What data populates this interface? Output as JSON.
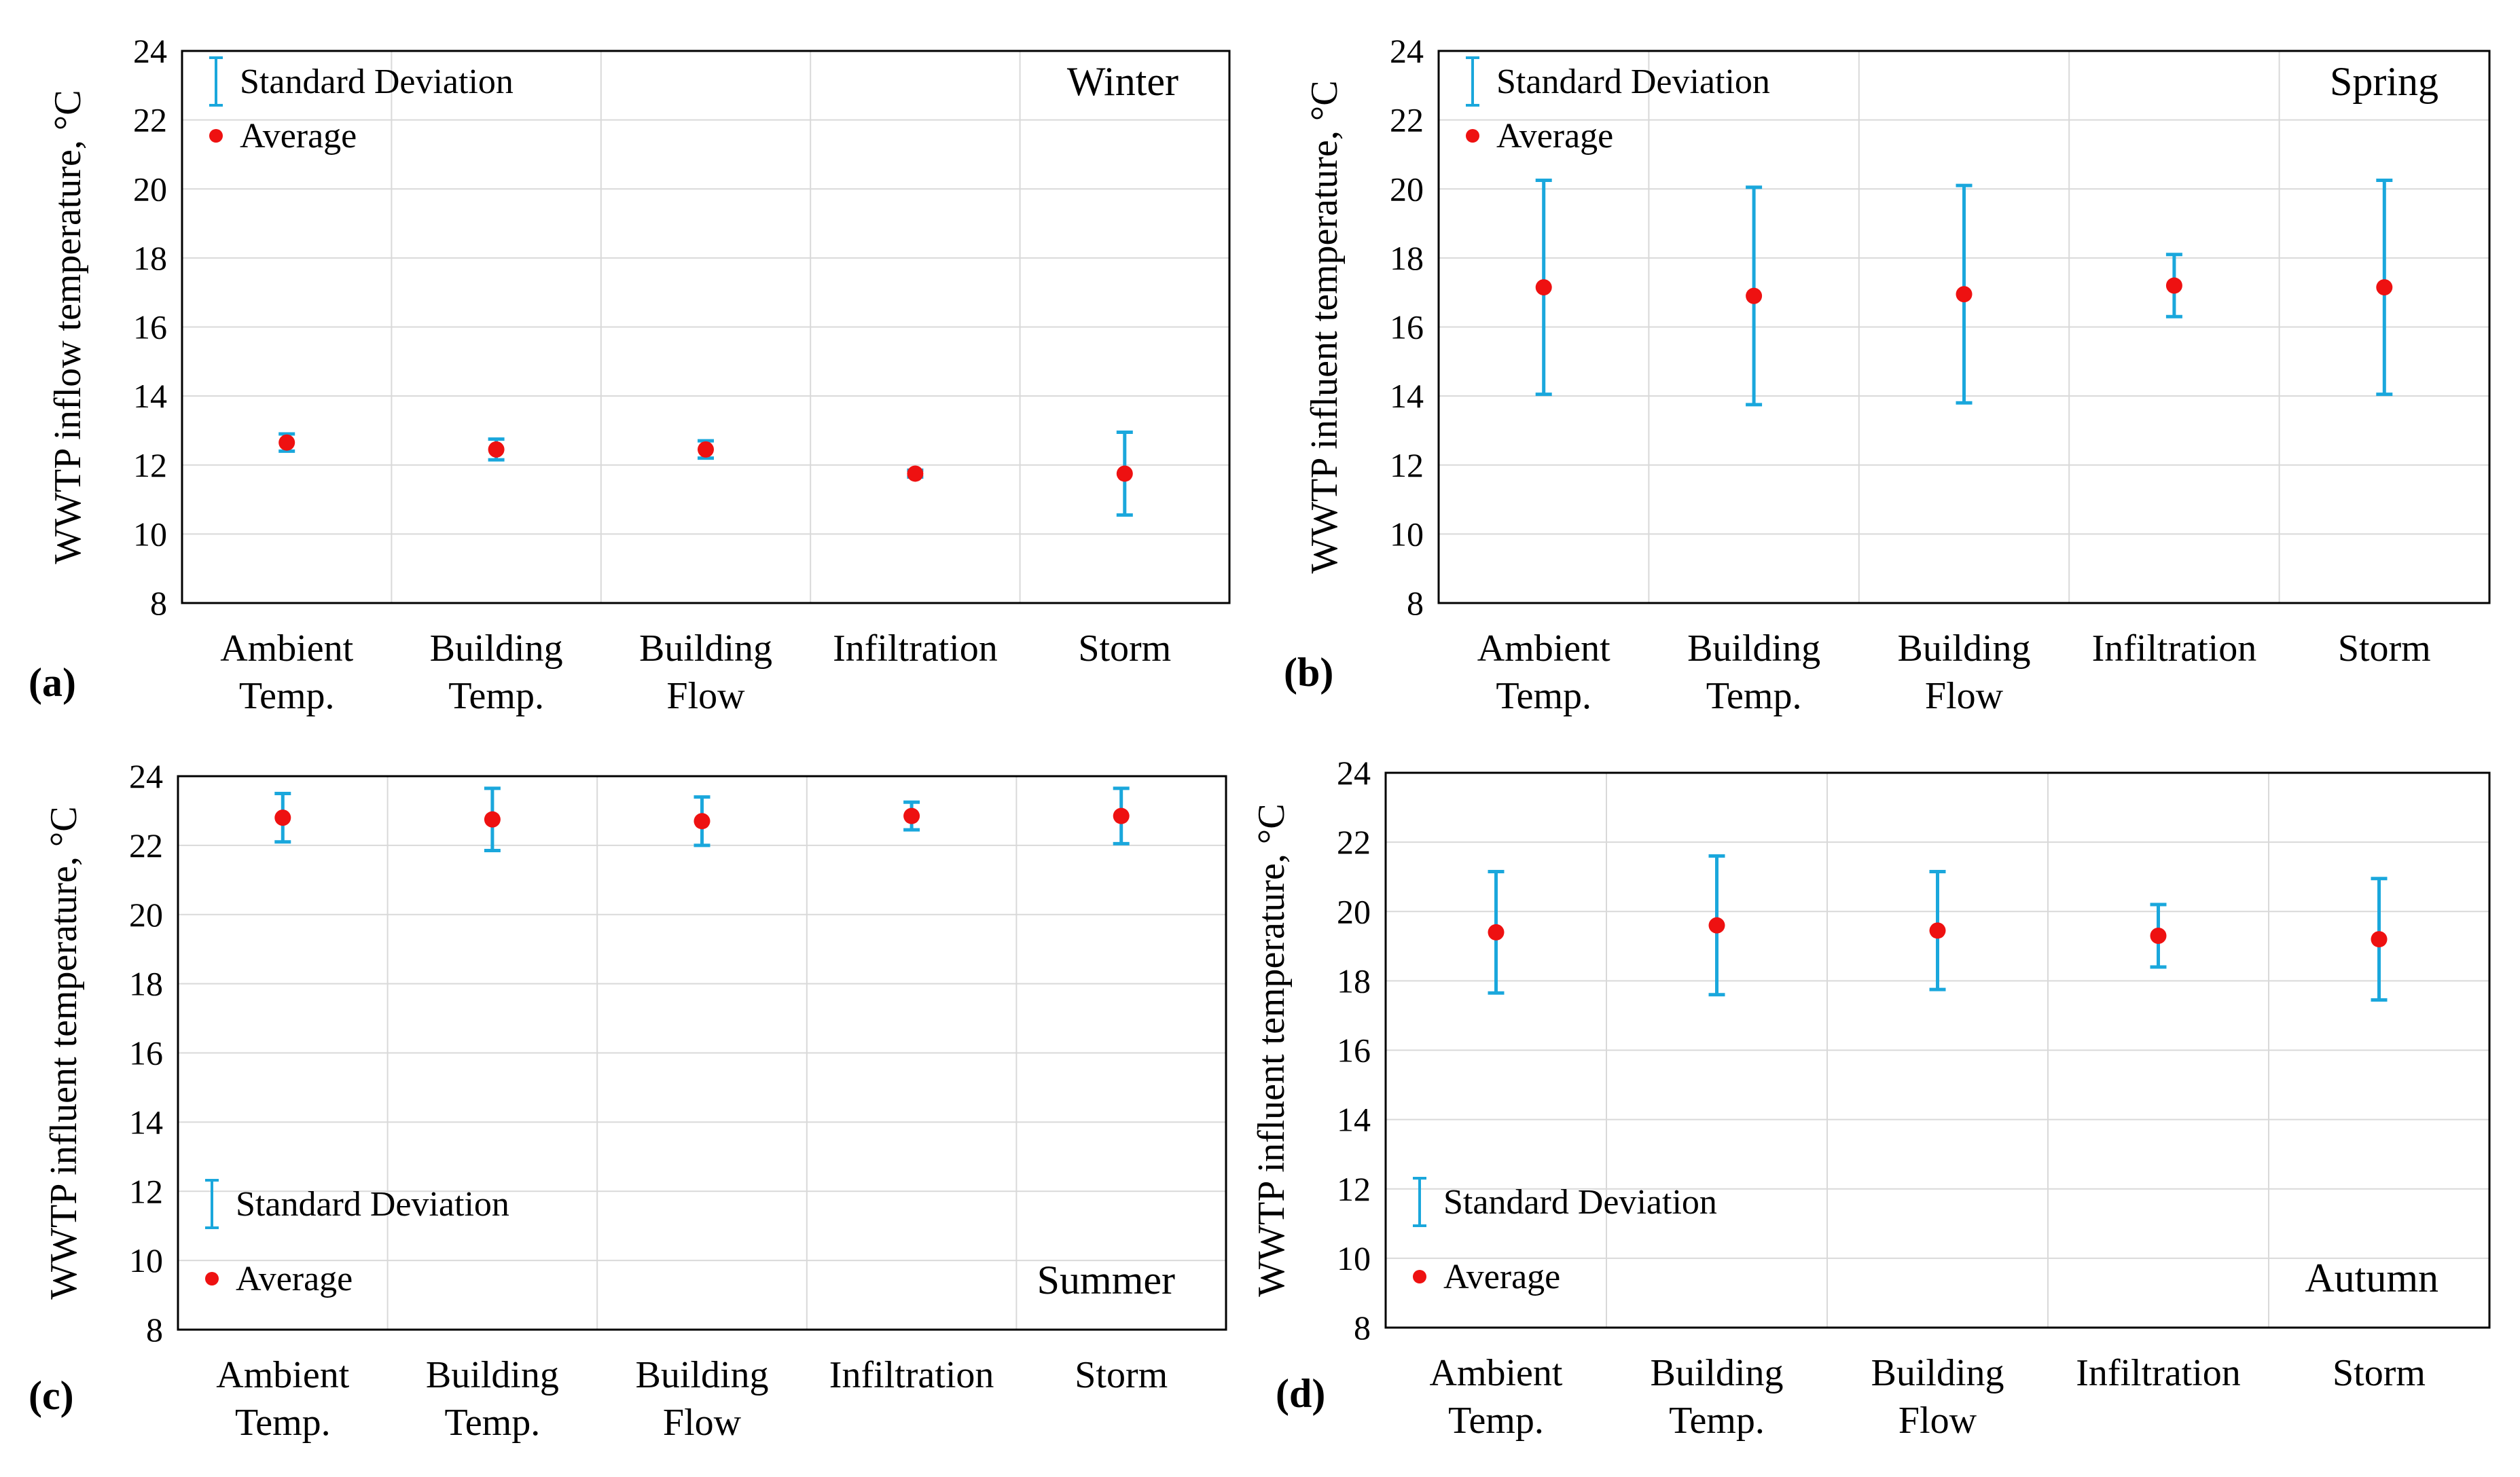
{
  "chart_data": [
    {
      "type": "scatter",
      "panel_label": "(a)",
      "season": "Winter",
      "ylabel": "WWTP inflow temperature, °C",
      "ylim": [
        8,
        24
      ],
      "yticks": [
        "8",
        "10",
        "12",
        "14",
        "16",
        "18",
        "20",
        "22",
        "24"
      ],
      "categories": [
        [
          "Ambient",
          "Temp."
        ],
        [
          "Building",
          "Temp."
        ],
        [
          "Building",
          "Flow"
        ],
        [
          "Infiltration"
        ],
        [
          "Storm"
        ]
      ],
      "series": [
        {
          "name": "Average",
          "values": [
            12.65,
            12.45,
            12.45,
            11.75,
            11.75
          ]
        },
        {
          "name": "Standard Deviation",
          "values": [
            0.25,
            0.3,
            0.25,
            0.1,
            1.2
          ]
        }
      ],
      "legend": {
        "std_label": "Standard Deviation",
        "avg_label": "Average",
        "position": "top-left"
      },
      "grid": true
    },
    {
      "type": "scatter",
      "panel_label": "(b)",
      "season": "Spring",
      "ylabel": "WWTP influent temperature, °C",
      "ylim": [
        8,
        24
      ],
      "yticks": [
        "8",
        "10",
        "12",
        "14",
        "16",
        "18",
        "20",
        "22",
        "24"
      ],
      "categories": [
        [
          "Ambient",
          "Temp."
        ],
        [
          "Building",
          "Temp."
        ],
        [
          "Building",
          "Flow"
        ],
        [
          "Infiltration"
        ],
        [
          "Storm"
        ]
      ],
      "series": [
        {
          "name": "Average",
          "values": [
            17.15,
            16.9,
            16.95,
            17.2,
            17.15
          ]
        },
        {
          "name": "Standard Deviation",
          "values": [
            3.1,
            3.15,
            3.15,
            0.9,
            3.1
          ]
        }
      ],
      "legend": {
        "std_label": "Standard Deviation",
        "avg_label": "Average",
        "position": "top-left"
      },
      "grid": true
    },
    {
      "type": "scatter",
      "panel_label": "(c)",
      "season": "Summer",
      "ylabel": "WWTP influent temperature, °C",
      "ylim": [
        8,
        24
      ],
      "yticks": [
        "8",
        "10",
        "12",
        "14",
        "16",
        "18",
        "20",
        "22",
        "24"
      ],
      "categories": [
        [
          "Ambient",
          "Temp."
        ],
        [
          "Building",
          "Temp."
        ],
        [
          "Building",
          "Flow"
        ],
        [
          "Infiltration"
        ],
        [
          "Storm"
        ]
      ],
      "series": [
        {
          "name": "Average",
          "values": [
            22.8,
            22.75,
            22.7,
            22.85,
            22.85
          ]
        },
        {
          "name": "Standard Deviation",
          "values": [
            0.7,
            0.9,
            0.7,
            0.4,
            0.8
          ]
        }
      ],
      "legend": {
        "std_label": "Standard Deviation",
        "avg_label": "Average",
        "position": "bottom-left"
      },
      "grid": true
    },
    {
      "type": "scatter",
      "panel_label": "(d)",
      "season": "Autumn",
      "ylabel": "WWTP influent temperature, °C",
      "ylim": [
        8,
        24
      ],
      "yticks": [
        "8",
        "10",
        "12",
        "14",
        "16",
        "18",
        "20",
        "22",
        "24"
      ],
      "categories": [
        [
          "Ambient",
          "Temp."
        ],
        [
          "Building",
          "Temp."
        ],
        [
          "Building",
          "Flow"
        ],
        [
          "Infiltration"
        ],
        [
          "Storm"
        ]
      ],
      "series": [
        {
          "name": "Average",
          "values": [
            19.4,
            19.6,
            19.45,
            19.3,
            19.2
          ]
        },
        {
          "name": "Standard Deviation",
          "values": [
            1.75,
            2.0,
            1.7,
            0.9,
            1.75
          ]
        }
      ],
      "legend": {
        "std_label": "Standard Deviation",
        "avg_label": "Average",
        "position": "bottom-left"
      },
      "grid": true
    }
  ],
  "colors": {
    "average_marker": "#ee1111",
    "error_bar": "#1aa7dc",
    "gridline": "#d9d9d9",
    "frame": "#000000"
  }
}
